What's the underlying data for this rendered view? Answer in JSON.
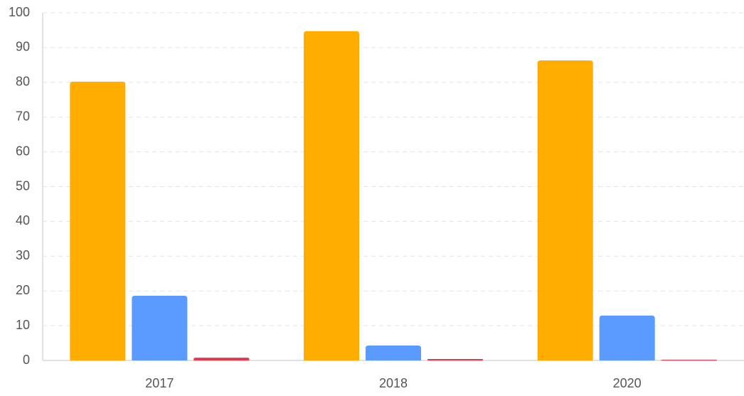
{
  "chart_data": {
    "type": "bar",
    "categories": [
      "2017",
      "2018",
      "2020"
    ],
    "series": [
      {
        "color": "#ffad00",
        "values": [
          80.2,
          94.7,
          86.3
        ]
      },
      {
        "color": "#5b9bff",
        "values": [
          18.6,
          4.3,
          12.9
        ]
      },
      {
        "color": "#e8364f",
        "values": [
          0.8,
          0.4,
          0.2
        ]
      }
    ],
    "ylim": [
      0,
      100
    ],
    "yticks": [
      0,
      10,
      20,
      30,
      40,
      50,
      60,
      70,
      80,
      90,
      100
    ],
    "grid": true
  }
}
